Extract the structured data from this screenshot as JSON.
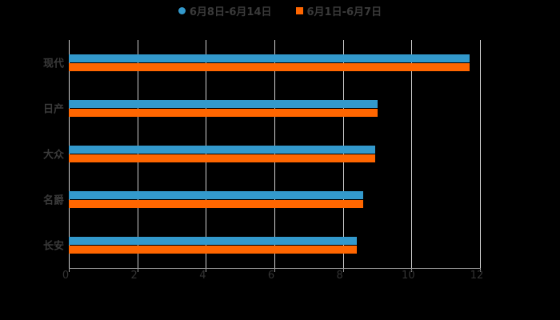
{
  "chart_data": {
    "type": "bar",
    "orientation": "horizontal",
    "title": "",
    "xlabel": "",
    "ylabel": "",
    "categories": [
      "现代",
      "日产",
      "大众",
      "名爵",
      "长安"
    ],
    "series": [
      {
        "name": "6月8日-6月14日",
        "color": "#3399cc",
        "values": [
          11.7,
          9.0,
          8.95,
          8.6,
          8.4
        ]
      },
      {
        "name": "6月1日-6月7日",
        "color": "#ff6600",
        "values": [
          11.7,
          9.0,
          8.95,
          8.6,
          8.4
        ]
      }
    ],
    "xlim": [
      0,
      12
    ],
    "xticks": [
      "0",
      "2",
      "4",
      "6",
      "8",
      "10",
      "12"
    ],
    "grid": true,
    "legend_position": "top"
  },
  "legend": {
    "items": [
      {
        "label": "6月8日-6月14日",
        "color": "#3399cc",
        "marker": "circle"
      },
      {
        "label": "6月1日-6月7日",
        "color": "#ff6600",
        "marker": "square"
      }
    ]
  }
}
